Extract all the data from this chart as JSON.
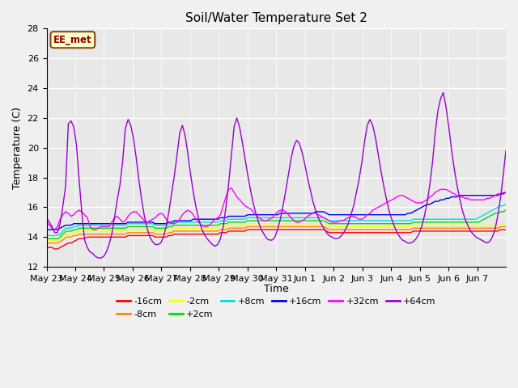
{
  "title": "Soil/Water Temperature Set 2",
  "xlabel": "Time",
  "ylabel": "Temperature (C)",
  "ylim": [
    12,
    28
  ],
  "xlim": [
    0,
    16
  ],
  "fig_bg_color": "#f0f0f0",
  "plot_bg_color": "#e8e8e8",
  "annotation_text": "EE_met",
  "annotation_bg": "#ffffcc",
  "annotation_border": "#8B4513",
  "x_tick_labels": [
    "May 23",
    "May 24",
    "May 25",
    "May 26",
    "May 27",
    "May 28",
    "May 29",
    "May 30",
    "May 31",
    "Jun 1",
    "Jun 2",
    "Jun 3",
    "Jun 4",
    "Jun 5",
    "Jun 6",
    "Jun 7"
  ],
  "legend_labels": [
    "-16cm",
    "-8cm",
    "-2cm",
    "+2cm",
    "+8cm",
    "+16cm",
    "+32cm",
    "+64cm"
  ],
  "legend_colors": [
    "#ff0000",
    "#ff8800",
    "#ffff00",
    "#00dd00",
    "#00dddd",
    "#0000ee",
    "#ff00ff",
    "#9900cc"
  ],
  "series": {
    "m16cm": [
      13.3,
      13.3,
      13.3,
      13.2,
      13.2,
      13.3,
      13.4,
      13.5,
      13.6,
      13.6,
      13.7,
      13.8,
      13.9,
      13.9,
      13.9,
      14.0,
      14.0,
      14.0,
      14.0,
      14.0,
      14.0,
      14.0,
      14.0,
      14.0,
      14.0,
      14.0,
      14.0,
      14.0,
      14.0,
      14.0,
      14.1,
      14.1,
      14.1,
      14.1,
      14.1,
      14.1,
      14.1,
      14.1,
      14.1,
      14.1,
      14.0,
      14.0,
      14.0,
      14.0,
      14.0,
      14.1,
      14.1,
      14.2,
      14.2,
      14.2,
      14.2,
      14.2,
      14.2,
      14.2,
      14.2,
      14.2,
      14.2,
      14.2,
      14.2,
      14.2,
      14.2,
      14.2,
      14.2,
      14.2,
      14.3,
      14.3,
      14.3,
      14.4,
      14.4,
      14.4,
      14.4,
      14.4,
      14.4,
      14.4,
      14.5,
      14.5,
      14.5,
      14.5,
      14.5,
      14.5,
      14.5,
      14.5,
      14.5,
      14.5,
      14.5,
      14.5,
      14.5,
      14.5,
      14.5,
      14.5,
      14.5,
      14.5,
      14.5,
      14.5,
      14.5,
      14.5,
      14.5,
      14.5,
      14.5,
      14.5,
      14.5,
      14.5,
      14.5,
      14.4,
      14.3,
      14.3,
      14.3,
      14.3,
      14.3,
      14.3,
      14.3,
      14.3,
      14.3,
      14.3,
      14.3,
      14.3,
      14.3,
      14.3,
      14.3,
      14.3,
      14.3,
      14.3,
      14.3,
      14.3,
      14.3,
      14.3,
      14.3,
      14.3,
      14.3,
      14.3,
      14.3,
      14.3,
      14.3,
      14.3,
      14.3,
      14.4,
      14.4,
      14.4,
      14.4,
      14.4,
      14.4,
      14.4,
      14.4,
      14.4,
      14.4,
      14.4,
      14.4,
      14.4,
      14.4,
      14.4,
      14.4,
      14.4,
      14.4,
      14.4,
      14.4,
      14.4,
      14.4,
      14.4,
      14.4,
      14.4,
      14.4,
      14.4,
      14.4,
      14.4,
      14.4,
      14.4,
      14.4,
      14.5,
      14.5,
      14.5
    ],
    "m8cm": [
      13.6,
      13.6,
      13.6,
      13.6,
      13.6,
      13.7,
      13.8,
      14.0,
      14.0,
      14.0,
      14.1,
      14.1,
      14.2,
      14.2,
      14.2,
      14.2,
      14.2,
      14.2,
      14.2,
      14.2,
      14.2,
      14.2,
      14.2,
      14.2,
      14.2,
      14.2,
      14.2,
      14.2,
      14.2,
      14.2,
      14.3,
      14.3,
      14.3,
      14.3,
      14.3,
      14.3,
      14.3,
      14.3,
      14.3,
      14.3,
      14.2,
      14.2,
      14.2,
      14.2,
      14.2,
      14.3,
      14.3,
      14.4,
      14.4,
      14.4,
      14.4,
      14.4,
      14.4,
      14.4,
      14.4,
      14.4,
      14.4,
      14.4,
      14.4,
      14.4,
      14.4,
      14.4,
      14.4,
      14.4,
      14.5,
      14.5,
      14.5,
      14.6,
      14.6,
      14.6,
      14.6,
      14.6,
      14.6,
      14.6,
      14.7,
      14.7,
      14.7,
      14.7,
      14.7,
      14.7,
      14.7,
      14.7,
      14.7,
      14.7,
      14.7,
      14.7,
      14.7,
      14.7,
      14.7,
      14.7,
      14.7,
      14.7,
      14.7,
      14.7,
      14.7,
      14.7,
      14.7,
      14.7,
      14.7,
      14.7,
      14.7,
      14.7,
      14.7,
      14.6,
      14.5,
      14.5,
      14.5,
      14.5,
      14.5,
      14.5,
      14.5,
      14.5,
      14.5,
      14.5,
      14.5,
      14.5,
      14.5,
      14.5,
      14.5,
      14.5,
      14.5,
      14.5,
      14.5,
      14.5,
      14.5,
      14.5,
      14.5,
      14.5,
      14.5,
      14.5,
      14.5,
      14.5,
      14.5,
      14.5,
      14.5,
      14.6,
      14.6,
      14.6,
      14.6,
      14.6,
      14.6,
      14.6,
      14.6,
      14.6,
      14.6,
      14.6,
      14.6,
      14.6,
      14.6,
      14.6,
      14.6,
      14.6,
      14.6,
      14.6,
      14.6,
      14.6,
      14.6,
      14.6,
      14.6,
      14.6,
      14.6,
      14.6,
      14.6,
      14.6,
      14.6,
      14.6,
      14.6,
      14.7,
      14.7,
      14.7
    ],
    "m2cm": [
      13.8,
      13.8,
      13.8,
      13.8,
      13.8,
      13.9,
      14.0,
      14.2,
      14.2,
      14.2,
      14.3,
      14.3,
      14.4,
      14.4,
      14.4,
      14.4,
      14.4,
      14.4,
      14.4,
      14.4,
      14.4,
      14.4,
      14.4,
      14.4,
      14.4,
      14.4,
      14.4,
      14.4,
      14.4,
      14.4,
      14.5,
      14.5,
      14.5,
      14.5,
      14.5,
      14.5,
      14.5,
      14.5,
      14.5,
      14.5,
      14.4,
      14.4,
      14.4,
      14.4,
      14.4,
      14.5,
      14.5,
      14.6,
      14.6,
      14.6,
      14.6,
      14.6,
      14.6,
      14.6,
      14.6,
      14.6,
      14.6,
      14.6,
      14.6,
      14.6,
      14.6,
      14.6,
      14.6,
      14.6,
      14.7,
      14.7,
      14.7,
      14.8,
      14.8,
      14.8,
      14.8,
      14.8,
      14.8,
      14.8,
      14.9,
      14.9,
      14.9,
      14.9,
      14.9,
      14.9,
      14.9,
      14.9,
      14.9,
      14.9,
      14.9,
      14.9,
      14.9,
      14.9,
      14.9,
      14.9,
      14.9,
      14.9,
      14.9,
      14.9,
      14.9,
      14.9,
      14.9,
      14.9,
      14.9,
      14.9,
      14.9,
      14.9,
      14.9,
      14.8,
      14.7,
      14.7,
      14.7,
      14.7,
      14.7,
      14.7,
      14.7,
      14.7,
      14.7,
      14.7,
      14.7,
      14.7,
      14.7,
      14.7,
      14.7,
      14.7,
      14.7,
      14.7,
      14.7,
      14.7,
      14.7,
      14.7,
      14.7,
      14.7,
      14.7,
      14.7,
      14.7,
      14.7,
      14.7,
      14.7,
      14.7,
      14.8,
      14.8,
      14.8,
      14.8,
      14.8,
      14.8,
      14.8,
      14.8,
      14.8,
      14.8,
      14.8,
      14.8,
      14.8,
      14.8,
      14.8,
      14.8,
      14.8,
      14.8,
      14.8,
      14.8,
      14.8,
      14.8,
      14.8,
      14.8,
      14.8,
      14.8,
      14.8,
      14.8,
      14.8,
      14.8,
      14.8,
      14.8,
      14.9,
      14.9,
      14.9
    ],
    "p2cm": [
      13.9,
      13.9,
      13.9,
      13.9,
      13.9,
      14.0,
      14.2,
      14.4,
      14.4,
      14.4,
      14.5,
      14.5,
      14.6,
      14.6,
      14.6,
      14.6,
      14.6,
      14.6,
      14.6,
      14.6,
      14.6,
      14.6,
      14.6,
      14.6,
      14.6,
      14.6,
      14.6,
      14.6,
      14.6,
      14.6,
      14.7,
      14.7,
      14.7,
      14.7,
      14.7,
      14.7,
      14.7,
      14.7,
      14.7,
      14.7,
      14.6,
      14.6,
      14.6,
      14.6,
      14.6,
      14.7,
      14.7,
      14.8,
      14.8,
      14.8,
      14.8,
      14.8,
      14.8,
      14.8,
      14.8,
      14.8,
      14.8,
      14.8,
      14.8,
      14.8,
      14.8,
      14.8,
      14.8,
      14.8,
      14.9,
      14.9,
      14.9,
      15.0,
      15.0,
      15.0,
      15.0,
      15.0,
      15.0,
      15.0,
      15.1,
      15.1,
      15.1,
      15.1,
      15.1,
      15.1,
      15.1,
      15.1,
      15.1,
      15.1,
      15.1,
      15.1,
      15.1,
      15.1,
      15.1,
      15.1,
      15.1,
      15.1,
      15.1,
      15.1,
      15.1,
      15.1,
      15.1,
      15.1,
      15.1,
      15.1,
      15.1,
      15.1,
      15.1,
      15.0,
      14.9,
      14.9,
      14.9,
      14.9,
      14.9,
      14.9,
      14.9,
      14.9,
      14.9,
      14.9,
      14.9,
      14.9,
      14.9,
      14.9,
      14.9,
      14.9,
      14.9,
      14.9,
      14.9,
      14.9,
      14.9,
      14.9,
      14.9,
      14.9,
      14.9,
      14.9,
      14.9,
      14.9,
      14.9,
      14.9,
      14.9,
      15.0,
      15.0,
      15.0,
      15.0,
      15.0,
      15.0,
      15.0,
      15.0,
      15.0,
      15.0,
      15.0,
      15.0,
      15.0,
      15.0,
      15.0,
      15.0,
      15.0,
      15.0,
      15.0,
      15.0,
      15.0,
      15.0,
      15.0,
      15.0,
      15.0,
      15.1,
      15.2,
      15.3,
      15.4,
      15.5,
      15.6,
      15.6,
      15.7,
      15.7,
      15.8
    ],
    "p8cm": [
      14.1,
      14.1,
      14.1,
      14.1,
      14.1,
      14.2,
      14.4,
      14.6,
      14.6,
      14.6,
      14.7,
      14.7,
      14.8,
      14.8,
      14.8,
      14.8,
      14.8,
      14.8,
      14.8,
      14.8,
      14.8,
      14.8,
      14.8,
      14.8,
      14.8,
      14.8,
      14.8,
      14.8,
      14.8,
      14.8,
      14.9,
      14.9,
      14.9,
      14.9,
      14.9,
      14.9,
      14.9,
      14.9,
      14.9,
      14.9,
      14.8,
      14.8,
      14.8,
      14.8,
      14.8,
      14.9,
      14.9,
      15.0,
      15.0,
      15.0,
      15.0,
      15.0,
      15.0,
      15.0,
      15.0,
      15.0,
      15.0,
      15.0,
      15.0,
      15.0,
      15.0,
      15.0,
      15.0,
      15.0,
      15.1,
      15.1,
      15.1,
      15.2,
      15.2,
      15.2,
      15.2,
      15.2,
      15.2,
      15.2,
      15.3,
      15.3,
      15.3,
      15.3,
      15.3,
      15.3,
      15.3,
      15.3,
      15.3,
      15.3,
      15.3,
      15.3,
      15.3,
      15.3,
      15.3,
      15.3,
      15.3,
      15.3,
      15.3,
      15.3,
      15.3,
      15.3,
      15.3,
      15.3,
      15.3,
      15.3,
      15.3,
      15.3,
      15.3,
      15.2,
      15.1,
      15.1,
      15.1,
      15.1,
      15.1,
      15.1,
      15.1,
      15.1,
      15.1,
      15.1,
      15.1,
      15.1,
      15.1,
      15.1,
      15.1,
      15.1,
      15.1,
      15.1,
      15.1,
      15.1,
      15.1,
      15.1,
      15.1,
      15.1,
      15.1,
      15.1,
      15.1,
      15.1,
      15.1,
      15.1,
      15.1,
      15.2,
      15.2,
      15.2,
      15.2,
      15.2,
      15.2,
      15.2,
      15.2,
      15.2,
      15.2,
      15.2,
      15.2,
      15.2,
      15.2,
      15.2,
      15.2,
      15.2,
      15.2,
      15.2,
      15.2,
      15.2,
      15.2,
      15.2,
      15.2,
      15.3,
      15.4,
      15.5,
      15.6,
      15.7,
      15.8,
      15.9,
      16.0,
      16.1,
      16.1,
      16.2
    ],
    "p16cm": [
      14.5,
      14.5,
      14.5,
      14.5,
      14.5,
      14.6,
      14.7,
      14.8,
      14.8,
      14.8,
      14.9,
      14.9,
      14.9,
      14.9,
      14.9,
      14.9,
      14.9,
      14.9,
      14.9,
      14.9,
      14.9,
      14.9,
      14.9,
      14.9,
      14.9,
      14.9,
      14.9,
      14.9,
      14.9,
      14.9,
      15.0,
      15.0,
      15.0,
      15.0,
      15.0,
      15.0,
      15.0,
      15.0,
      15.0,
      15.0,
      14.9,
      14.9,
      14.9,
      14.9,
      14.9,
      15.0,
      15.0,
      15.1,
      15.1,
      15.1,
      15.1,
      15.1,
      15.1,
      15.1,
      15.2,
      15.2,
      15.2,
      15.2,
      15.2,
      15.2,
      15.2,
      15.2,
      15.2,
      15.2,
      15.3,
      15.3,
      15.3,
      15.4,
      15.4,
      15.4,
      15.4,
      15.4,
      15.4,
      15.4,
      15.5,
      15.5,
      15.5,
      15.5,
      15.5,
      15.5,
      15.5,
      15.5,
      15.5,
      15.5,
      15.5,
      15.5,
      15.6,
      15.6,
      15.6,
      15.6,
      15.6,
      15.6,
      15.6,
      15.6,
      15.6,
      15.6,
      15.6,
      15.6,
      15.6,
      15.7,
      15.7,
      15.7,
      15.7,
      15.6,
      15.5,
      15.5,
      15.5,
      15.5,
      15.5,
      15.5,
      15.5,
      15.5,
      15.5,
      15.5,
      15.5,
      15.5,
      15.5,
      15.5,
      15.5,
      15.5,
      15.5,
      15.5,
      15.5,
      15.5,
      15.5,
      15.5,
      15.5,
      15.5,
      15.5,
      15.5,
      15.5,
      15.5,
      15.5,
      15.6,
      15.6,
      15.7,
      15.8,
      15.9,
      16.0,
      16.1,
      16.2,
      16.2,
      16.3,
      16.4,
      16.4,
      16.5,
      16.5,
      16.6,
      16.6,
      16.7,
      16.7,
      16.7,
      16.8,
      16.8,
      16.8,
      16.8,
      16.8,
      16.8,
      16.8,
      16.8,
      16.8,
      16.8,
      16.8,
      16.8,
      16.8,
      16.8,
      16.8,
      16.9,
      16.9,
      17.0
    ],
    "p32cm": [
      15.0,
      14.8,
      14.6,
      14.5,
      14.7,
      15.2,
      15.5,
      15.7,
      15.6,
      15.4,
      15.5,
      15.7,
      15.8,
      15.7,
      15.5,
      15.3,
      14.7,
      14.5,
      14.5,
      14.6,
      14.7,
      14.7,
      14.7,
      14.7,
      15.0,
      15.3,
      15.4,
      15.2,
      15.0,
      15.1,
      15.4,
      15.6,
      15.7,
      15.7,
      15.5,
      15.3,
      15.1,
      15.0,
      15.1,
      15.2,
      15.3,
      15.5,
      15.6,
      15.5,
      15.2,
      15.0,
      14.9,
      14.9,
      15.0,
      15.2,
      15.5,
      15.7,
      15.8,
      15.7,
      15.5,
      15.2,
      15.0,
      14.8,
      14.7,
      14.7,
      14.8,
      15.0,
      15.2,
      15.3,
      15.5,
      16.1,
      16.7,
      17.2,
      17.3,
      17.0,
      16.7,
      16.5,
      16.3,
      16.1,
      16.0,
      15.9,
      15.7,
      15.5,
      15.3,
      15.2,
      15.1,
      15.1,
      15.2,
      15.3,
      15.5,
      15.7,
      15.8,
      15.8,
      15.7,
      15.5,
      15.3,
      15.1,
      15.0,
      15.0,
      15.1,
      15.2,
      15.4,
      15.5,
      15.6,
      15.6,
      15.5,
      15.4,
      15.3,
      15.2,
      15.1,
      15.0,
      15.0,
      15.0,
      15.1,
      15.1,
      15.2,
      15.3,
      15.4,
      15.4,
      15.3,
      15.2,
      15.2,
      15.3,
      15.5,
      15.6,
      15.8,
      15.9,
      16.0,
      16.1,
      16.2,
      16.3,
      16.4,
      16.5,
      16.6,
      16.7,
      16.8,
      16.8,
      16.7,
      16.6,
      16.5,
      16.4,
      16.3,
      16.3,
      16.3,
      16.4,
      16.5,
      16.7,
      16.8,
      17.0,
      17.1,
      17.2,
      17.2,
      17.2,
      17.1,
      17.0,
      16.9,
      16.8,
      16.7,
      16.7,
      16.6,
      16.6,
      16.5,
      16.5,
      16.5,
      16.5,
      16.5,
      16.5,
      16.6,
      16.6,
      16.7,
      16.8,
      16.9,
      16.9,
      17.0,
      17.0
    ],
    "p64cm": [
      15.3,
      15.0,
      14.7,
      14.3,
      14.3,
      14.9,
      16.1,
      17.4,
      21.6,
      21.8,
      21.4,
      20.2,
      17.8,
      15.6,
      13.8,
      13.3,
      13.0,
      12.9,
      12.7,
      12.6,
      12.6,
      12.7,
      13.0,
      13.5,
      14.2,
      15.3,
      16.5,
      17.5,
      19.1,
      21.3,
      21.9,
      21.5,
      20.6,
      19.3,
      17.8,
      16.5,
      15.4,
      14.6,
      14.0,
      13.7,
      13.5,
      13.5,
      13.6,
      14.0,
      14.7,
      15.7,
      16.9,
      18.1,
      19.5,
      21.0,
      21.5,
      20.8,
      19.6,
      18.2,
      17.0,
      16.0,
      15.2,
      14.6,
      14.2,
      13.9,
      13.7,
      13.5,
      13.4,
      13.5,
      13.9,
      14.7,
      16.0,
      17.6,
      19.5,
      21.4,
      22.0,
      21.4,
      20.4,
      19.3,
      18.2,
      17.2,
      16.3,
      15.6,
      15.0,
      14.5,
      14.2,
      13.9,
      13.8,
      13.8,
      14.0,
      14.5,
      15.2,
      16.1,
      17.1,
      18.2,
      19.3,
      20.1,
      20.5,
      20.3,
      19.7,
      18.9,
      18.0,
      17.2,
      16.4,
      15.8,
      15.3,
      14.9,
      14.6,
      14.3,
      14.1,
      14.0,
      13.9,
      13.9,
      14.0,
      14.2,
      14.5,
      14.9,
      15.5,
      16.1,
      17.0,
      17.9,
      19.0,
      20.4,
      21.5,
      21.9,
      21.5,
      20.7,
      19.6,
      18.5,
      17.5,
      16.6,
      15.8,
      15.2,
      14.7,
      14.3,
      14.0,
      13.8,
      13.7,
      13.6,
      13.6,
      13.7,
      13.9,
      14.2,
      14.7,
      15.4,
      16.3,
      17.5,
      19.0,
      21.0,
      22.5,
      23.3,
      23.7,
      22.7,
      21.4,
      19.9,
      18.6,
      17.5,
      16.6,
      15.8,
      15.2,
      14.8,
      14.4,
      14.2,
      14.0,
      13.9,
      13.8,
      13.7,
      13.6,
      13.7,
      14.0,
      14.5,
      15.4,
      16.6,
      18.1,
      19.8
    ]
  }
}
